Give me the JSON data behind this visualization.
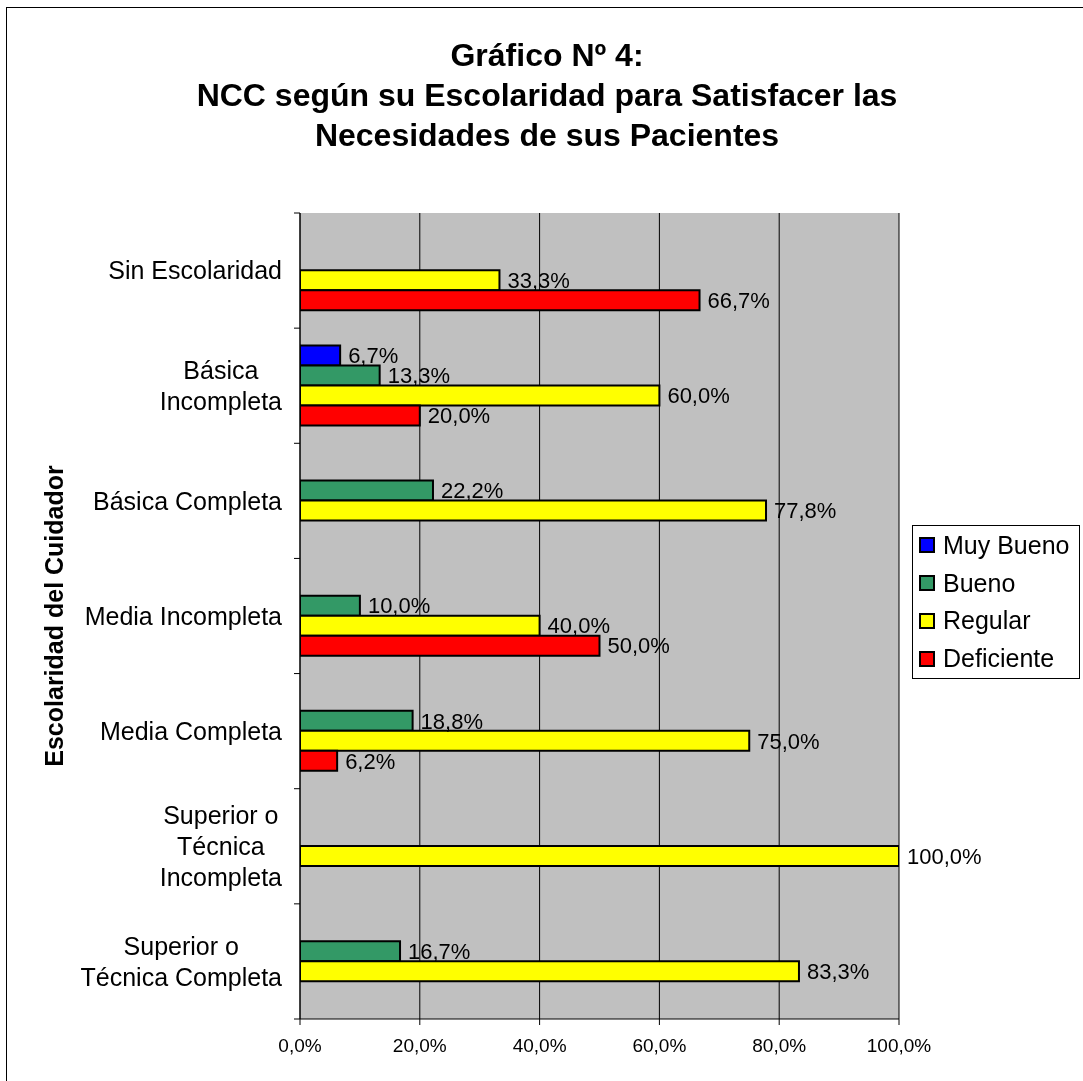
{
  "chart_data": {
    "type": "bar",
    "orientation": "horizontal",
    "title": "Gráfico Nº 4:\nNCC según su Escolaridad para Satisfacer las Necesidades de sus Pacientes",
    "ylabel": "Escolaridad del Cuidador",
    "categories": [
      "Sin Escolaridad",
      "Básica Incompleta",
      "Básica Completa",
      "Media Incompleta",
      "Media Completa",
      "Superior o Técnica Incompleta",
      "Superior o Técnica Completa"
    ],
    "series": [
      {
        "name": "Muy Bueno",
        "color": "#0000ff",
        "values": [
          null,
          6.7,
          null,
          null,
          null,
          null,
          null
        ],
        "value_labels": [
          null,
          "6,7%",
          null,
          null,
          null,
          null,
          null
        ]
      },
      {
        "name": "Bueno",
        "color": "#339966",
        "values": [
          null,
          13.3,
          22.2,
          10.0,
          18.8,
          null,
          16.7
        ],
        "value_labels": [
          null,
          "13,3%",
          "22,2%",
          "10,0%",
          "18,8%",
          null,
          "16,7%"
        ]
      },
      {
        "name": "Regular",
        "color": "#ffff00",
        "values": [
          33.3,
          60.0,
          77.8,
          40.0,
          75.0,
          100.0,
          83.3
        ],
        "value_labels": [
          "33,3%",
          "60,0%",
          "77,8%",
          "40,0%",
          "75,0%",
          "100,0%",
          "83,3%"
        ]
      },
      {
        "name": "Deficiente",
        "color": "#ff0000",
        "values": [
          66.7,
          20.0,
          null,
          50.0,
          6.2,
          null,
          null
        ],
        "value_labels": [
          "66,7%",
          "20,0%",
          null,
          "50,0%",
          "6,2%",
          null,
          null
        ]
      }
    ],
    "xlim": [
      0,
      100
    ],
    "xticks": [
      {
        "value": 0,
        "label": "0,0%"
      },
      {
        "value": 20,
        "label": "20,0%"
      },
      {
        "value": 40,
        "label": "40,0%"
      },
      {
        "value": 60,
        "label": "60,0%"
      },
      {
        "value": 80,
        "label": "80,0%"
      },
      {
        "value": 100,
        "label": "100,0%"
      }
    ],
    "grid": "x",
    "legend": "right"
  }
}
